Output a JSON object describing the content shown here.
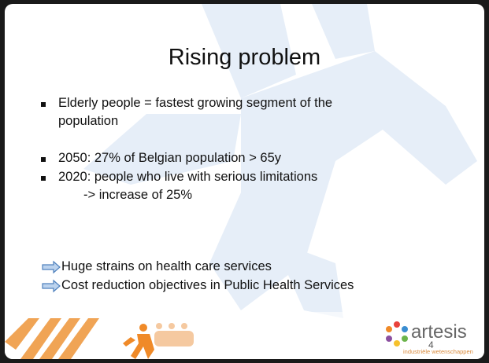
{
  "slide": {
    "title": "Rising problem",
    "bullets": [
      [
        "Elderly people = fastest growing segment of the",
        "population"
      ],
      [
        "2050: 27% of Belgian population > 65y"
      ],
      [
        "2020: people who live with serious limitations",
        "-> increase of 25%"
      ]
    ],
    "conclusions": [
      "Huge strains on health care services",
      "Cost reduction objectives in Public Health Services"
    ],
    "page_number": "4"
  },
  "footer": {
    "logo": "artesis",
    "tagline": "industriële wetenschappen"
  }
}
